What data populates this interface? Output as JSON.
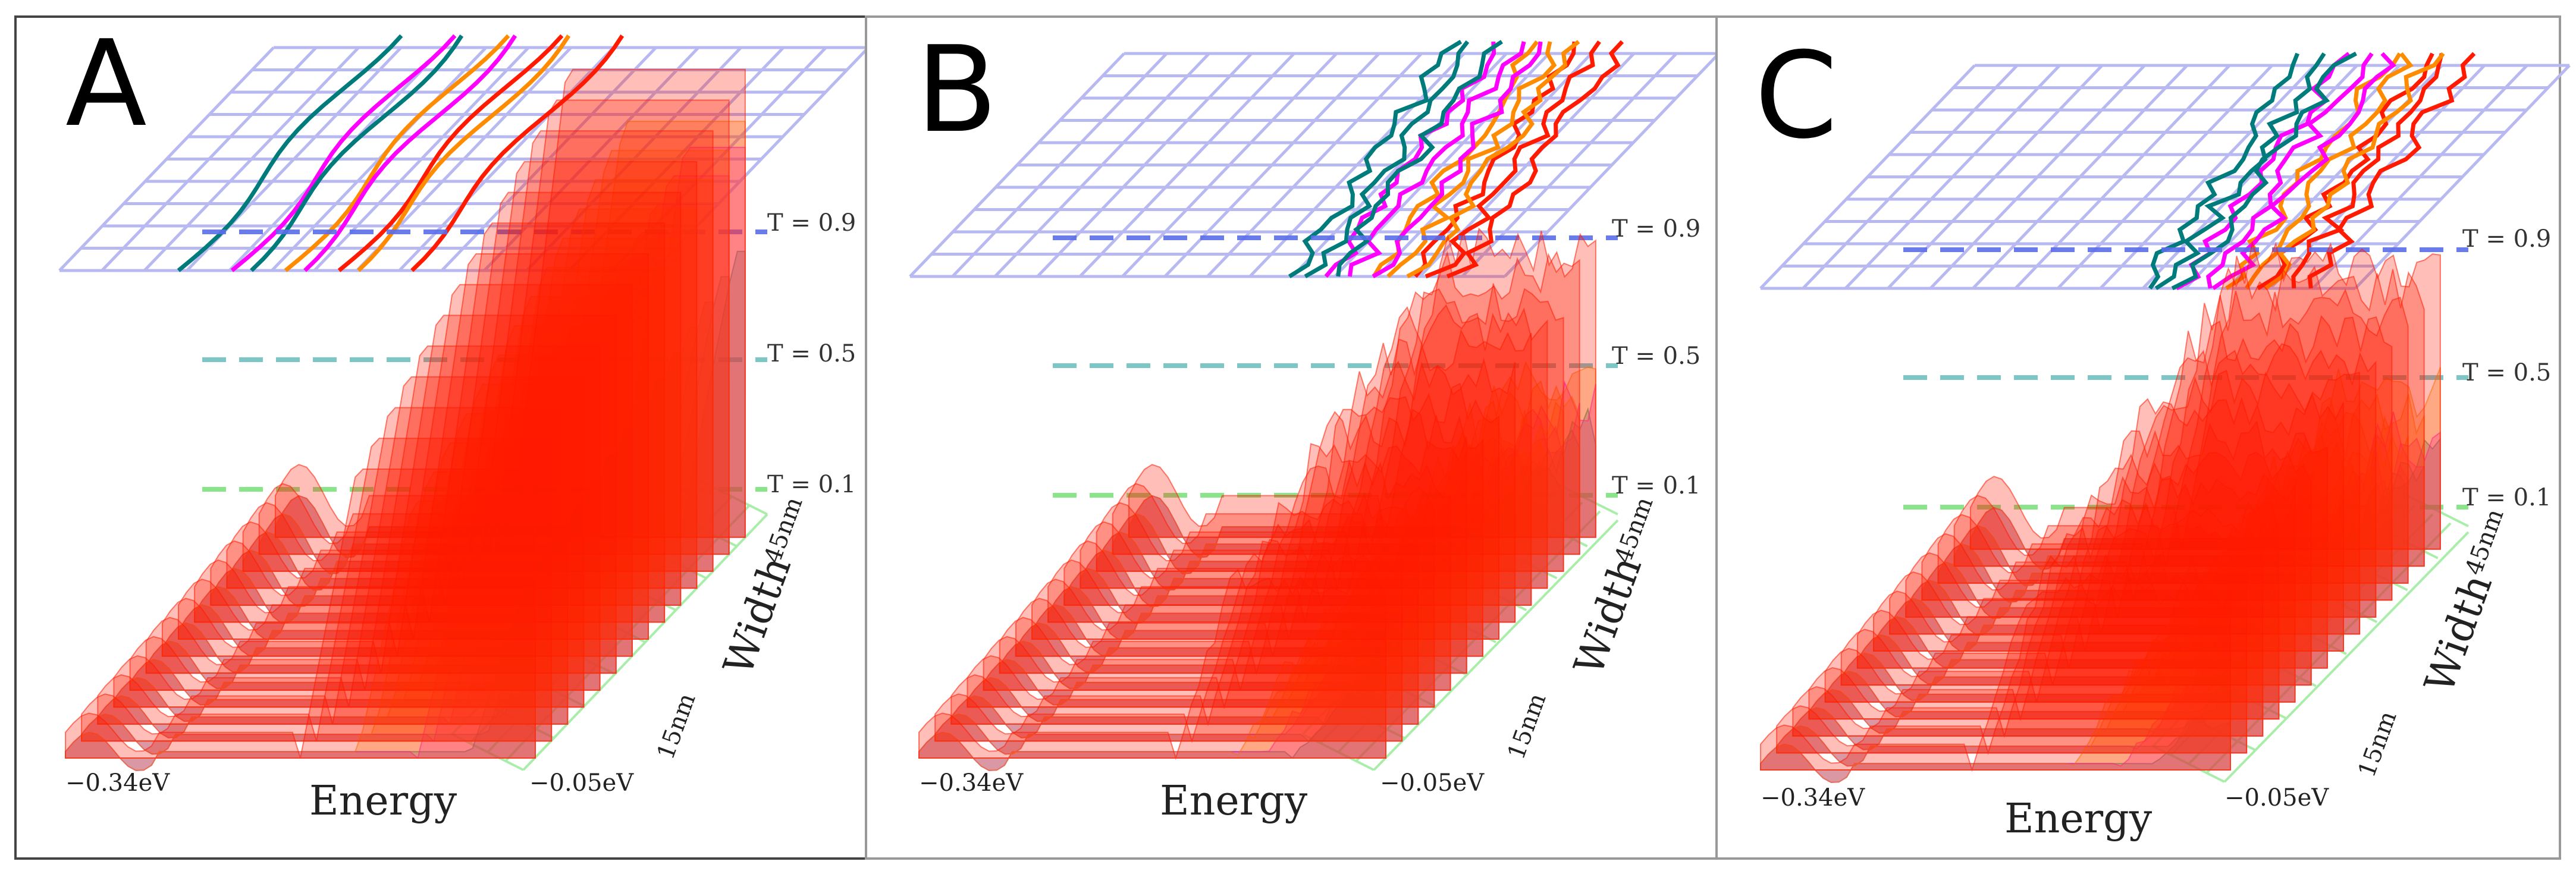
{
  "figure": {
    "panels": [
      {
        "letter": "A",
        "kind": "smooth"
      },
      {
        "letter": "B",
        "kind": "noisy"
      },
      {
        "letter": "C",
        "kind": "noisy"
      }
    ]
  },
  "colors": {
    "teal": "#007b7b",
    "magenta": "#ff00ff",
    "orange": "#ff8c00",
    "red": "#ff1a00",
    "grid_top": "#b9b9f2",
    "grid_side": "#a8eea8",
    "line_t09": "#5a6ee8",
    "line_t05": "#6fc0c0",
    "line_t01": "#7ee37e",
    "frame": "#444444"
  },
  "chart_data": [
    {
      "type": "area",
      "panel": "A",
      "xlabel": "Energy",
      "ylabel": "Width",
      "x_ticks": [
        "−0.34eV",
        "−0.05eV"
      ],
      "width_ticks": [
        "15nm",
        "45nm"
      ],
      "threshold_labels": [
        "T = 0.9",
        "T = 0.5",
        "T = 0.1"
      ],
      "thresholds": [
        0.9,
        0.5,
        0.1
      ],
      "series": [
        {
          "name": "teal",
          "color_key": "teal",
          "onset": 0.86,
          "plateau": 0.55
        },
        {
          "name": "magenta",
          "color_key": "magenta",
          "onset": 0.75,
          "plateau": 0.75
        },
        {
          "name": "orange",
          "color_key": "orange",
          "onset": 0.62,
          "plateau": 0.8
        },
        {
          "name": "red",
          "color_key": "red",
          "onset": 0.5,
          "plateau": 0.9
        }
      ]
    },
    {
      "type": "area",
      "panel": "B",
      "xlabel": "Energy",
      "ylabel": "Width",
      "x_ticks": [
        "−0.34eV",
        "−0.05eV"
      ],
      "width_ticks": [
        "15nm",
        "45nm"
      ],
      "threshold_labels": [
        "T = 0.9",
        "T = 0.5",
        "T = 0.1"
      ],
      "thresholds": [
        0.9,
        0.5,
        0.1
      ],
      "series": [
        {
          "name": "teal",
          "color_key": "teal",
          "onset": 0.8,
          "plateau": 0.2
        },
        {
          "name": "magenta",
          "color_key": "magenta",
          "onset": 0.74,
          "plateau": 0.25
        },
        {
          "name": "orange",
          "color_key": "orange",
          "onset": 0.68,
          "plateau": 0.3
        },
        {
          "name": "red",
          "color_key": "red",
          "onset": 0.55,
          "plateau": 0.55
        }
      ]
    },
    {
      "type": "area",
      "panel": "C",
      "xlabel": "Energy",
      "ylabel": "Width",
      "x_ticks": [
        "−0.34eV",
        "−0.05eV"
      ],
      "width_ticks": [
        "15nm",
        "45nm"
      ],
      "threshold_labels": [
        "T = 0.9",
        "T = 0.5",
        "T = 0.1"
      ],
      "thresholds": [
        0.9,
        0.5,
        0.1
      ],
      "series": [
        {
          "name": "teal",
          "color_key": "teal",
          "onset": 0.82,
          "plateau": 0.18
        },
        {
          "name": "magenta",
          "color_key": "magenta",
          "onset": 0.76,
          "plateau": 0.22
        },
        {
          "name": "orange",
          "color_key": "orange",
          "onset": 0.66,
          "plateau": 0.3
        },
        {
          "name": "red",
          "color_key": "red",
          "onset": 0.45,
          "plateau": 0.55
        }
      ]
    }
  ]
}
